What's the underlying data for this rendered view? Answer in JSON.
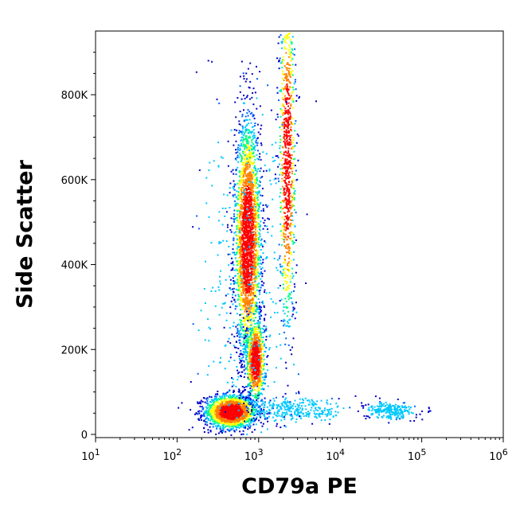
{
  "chart_data": {
    "type": "scatter",
    "style": "flow-cytometry density dot plot",
    "xlabel": "CD79a PE",
    "ylabel": "Side Scatter",
    "x_scale": "log",
    "xlim": [
      10,
      1000000
    ],
    "ylim": [
      0,
      950000
    ],
    "x_ticks": [
      {
        "value": 10,
        "base": "10",
        "exp": "1"
      },
      {
        "value": 100,
        "base": "10",
        "exp": "2"
      },
      {
        "value": 1000,
        "base": "10",
        "exp": "3"
      },
      {
        "value": 10000,
        "base": "10",
        "exp": "4"
      },
      {
        "value": 100000,
        "base": "10",
        "exp": "5"
      },
      {
        "value": 1000000,
        "base": "10",
        "exp": "6"
      }
    ],
    "y_ticks": [
      {
        "value": 0,
        "label": "0"
      },
      {
        "value": 200000,
        "label": "200K"
      },
      {
        "value": 400000,
        "label": "400K"
      },
      {
        "value": 600000,
        "label": "600K"
      },
      {
        "value": 800000,
        "label": "800K"
      }
    ],
    "grid": false,
    "legend": "none",
    "density_colors": [
      "#0000c8",
      "#0060ff",
      "#00c8ff",
      "#00ff80",
      "#ffff00",
      "#ff8000",
      "#ff0000"
    ],
    "populations": [
      {
        "x_center": 450,
        "y_center": 55000,
        "x_spread_decades": 0.16,
        "y_spread": 20000,
        "count": 1600
      },
      {
        "x_center": 720,
        "y_center": 460000,
        "x_spread_decades": 0.08,
        "y_spread": 140000,
        "count": 2600
      },
      {
        "x_center": 900,
        "y_center": 175000,
        "x_spread_decades": 0.06,
        "y_spread": 50000,
        "count": 800
      },
      {
        "x_center": 2200,
        "y_center": 650000,
        "x_spread_decades": 0.05,
        "y_spread": 200000,
        "count": 900
      },
      {
        "x_center": 3000,
        "y_center": 60000,
        "x_spread_decades": 0.3,
        "y_spread": 15000,
        "count": 300
      },
      {
        "x_center": 40000,
        "y_center": 58000,
        "x_spread_decades": 0.15,
        "y_spread": 10000,
        "count": 250
      },
      {
        "x_center": 700,
        "y_center": 300000,
        "x_spread_decades": 0.3,
        "y_spread": 250000,
        "count": 400
      }
    ]
  }
}
